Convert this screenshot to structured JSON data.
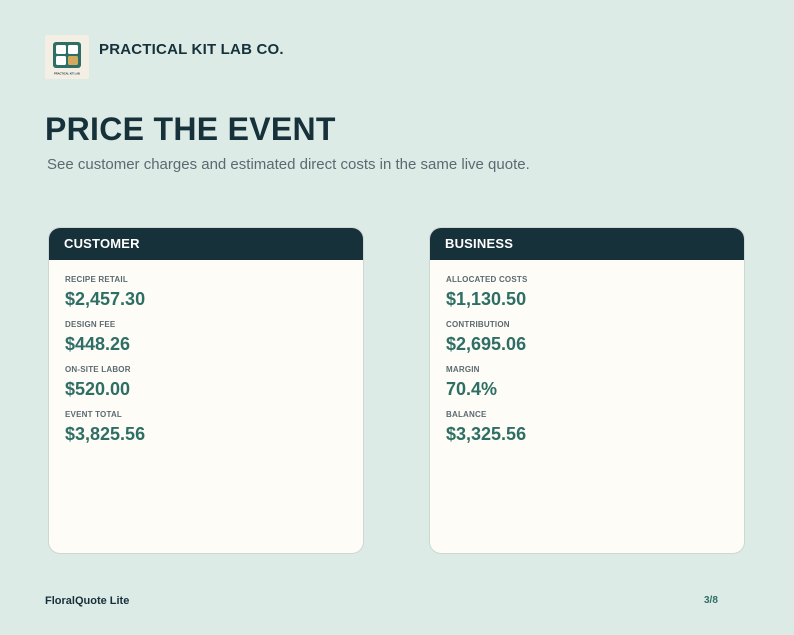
{
  "brand": {
    "name": "PRACTICAL KIT LAB CO.",
    "logo_caption": "PRACTICAL KIT LAB",
    "logo_icon": "four-tile-grid-icon"
  },
  "page": {
    "title": "PRICE THE EVENT",
    "subtitle": "See customer charges and estimated direct costs in the same live quote."
  },
  "customer": {
    "header": "CUSTOMER",
    "metrics": [
      {
        "label": "RECIPE RETAIL",
        "value": "$2,457.30"
      },
      {
        "label": "DESIGN FEE",
        "value": "$448.26"
      },
      {
        "label": "ON-SITE LABOR",
        "value": "$520.00"
      },
      {
        "label": "EVENT TOTAL",
        "value": "$3,825.56"
      }
    ]
  },
  "business": {
    "header": "BUSINESS",
    "metrics": [
      {
        "label": "ALLOCATED COSTS",
        "value": "$1,130.50"
      },
      {
        "label": "CONTRIBUTION",
        "value": "$2,695.06"
      },
      {
        "label": "MARGIN",
        "value": "70.4%"
      },
      {
        "label": "BALANCE",
        "value": "$3,325.56"
      }
    ]
  },
  "footer": {
    "app_name": "FloralQuote Lite",
    "page_indicator": "3/8"
  },
  "colors": {
    "background": "#dcebe6",
    "dark": "#17313a",
    "accent": "#2f6e64",
    "card": "#fdfcf7",
    "logo_gold": "#d4a95c"
  }
}
